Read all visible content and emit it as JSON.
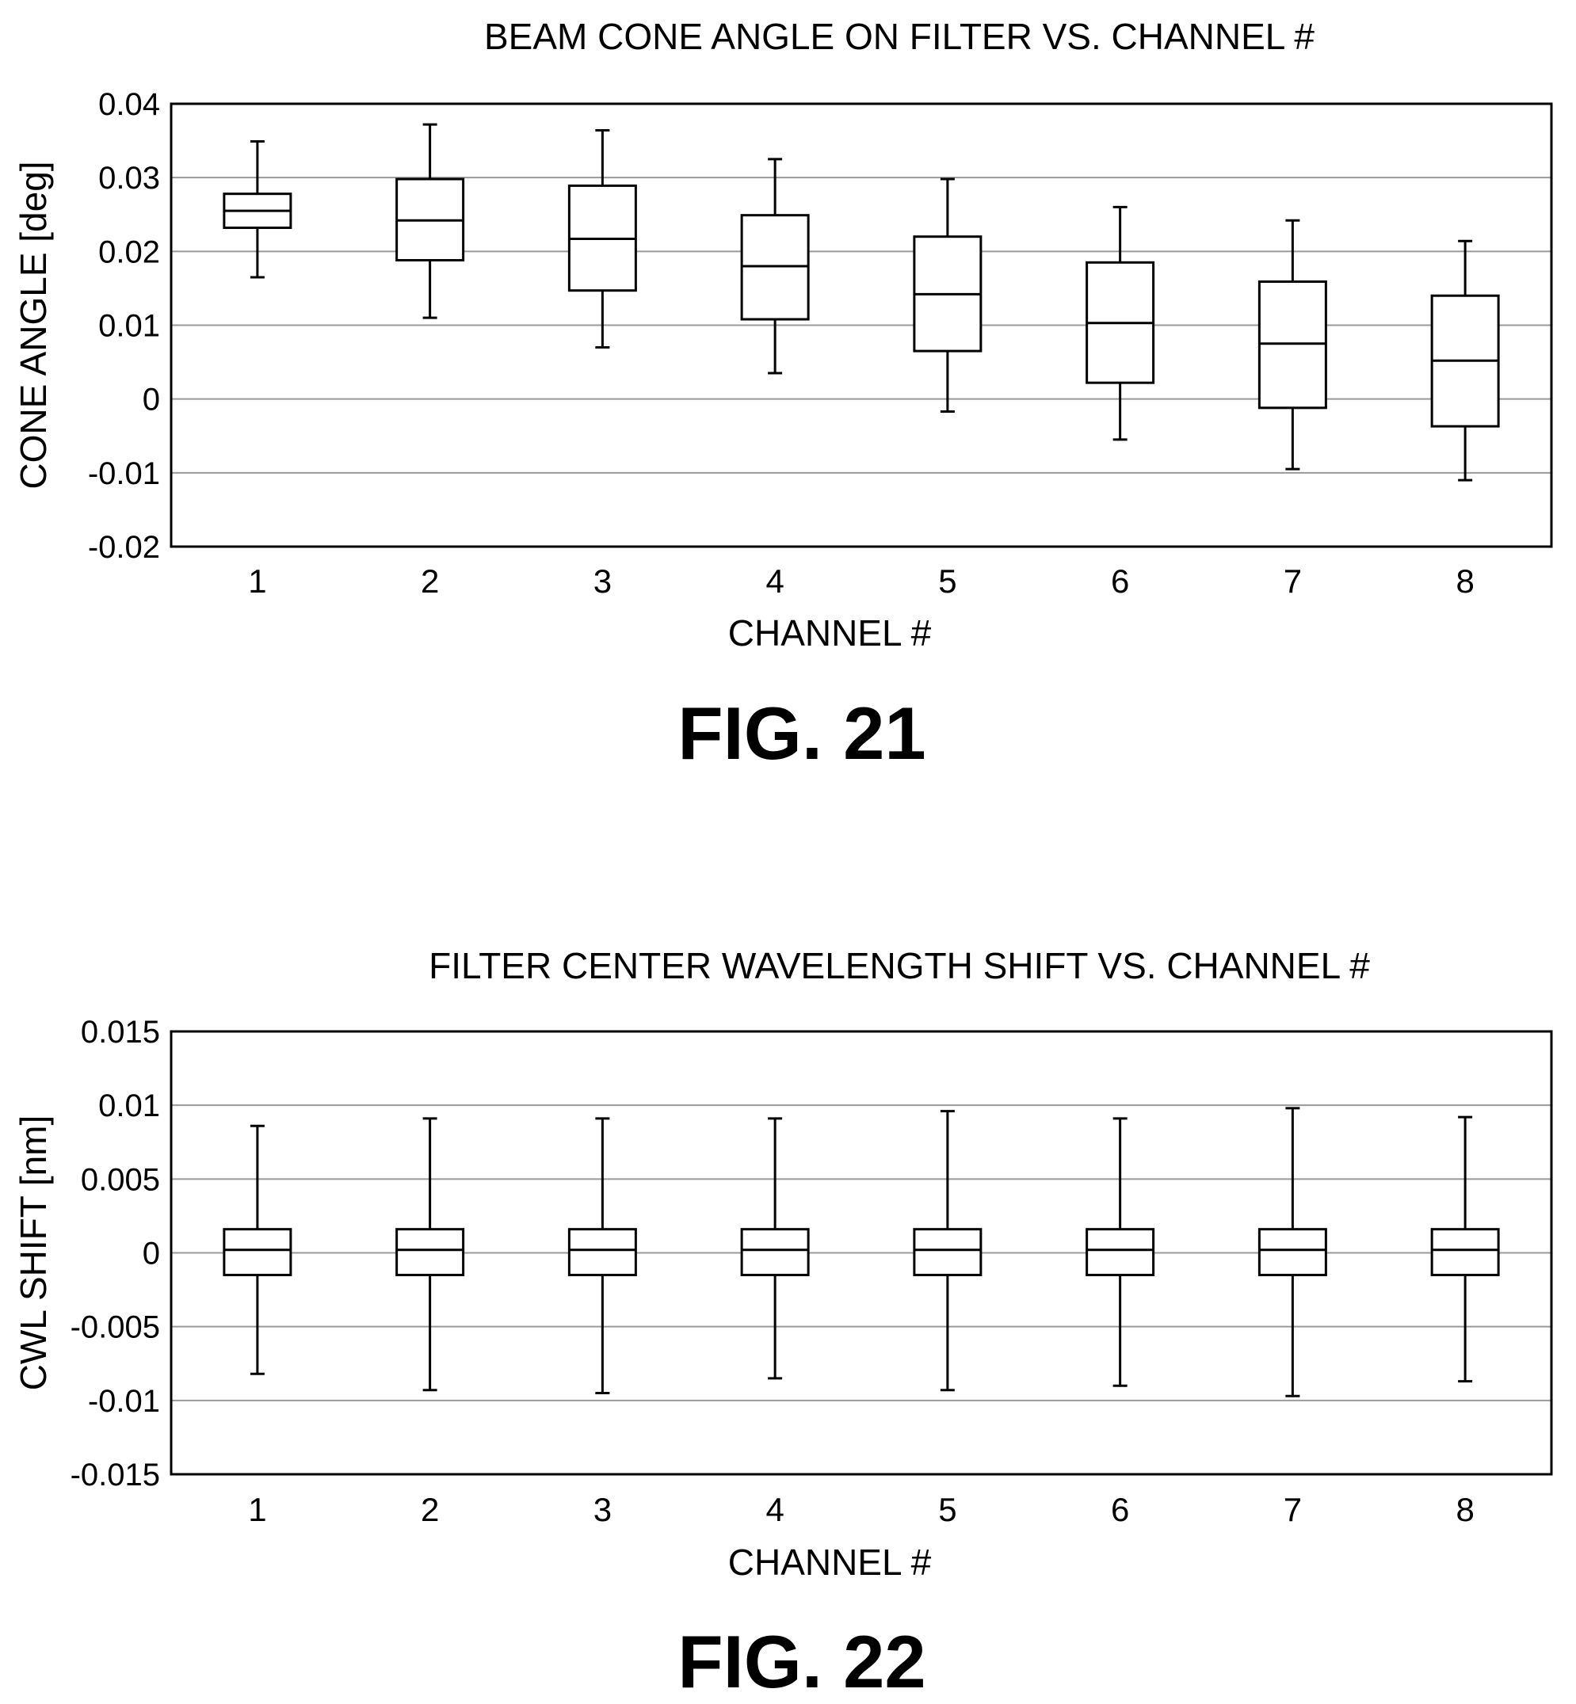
{
  "chart_data": [
    {
      "type": "box",
      "title": "BEAM CONE ANGLE ON FILTER VS. CHANNEL #",
      "xlabel": "CHANNEL #",
      "ylabel": "CONE ANGLE [deg]",
      "ylim": [
        -0.02,
        0.04
      ],
      "yticks": [
        "0.04",
        "0.03",
        "0.02",
        "0.01",
        "0",
        "-0.01",
        "-0.02"
      ],
      "grid": true,
      "categories": [
        "1",
        "2",
        "3",
        "4",
        "5",
        "6",
        "7",
        "8"
      ],
      "boxes": [
        {
          "min": 0.0165,
          "q1": 0.0232,
          "median": 0.0255,
          "q3": 0.0278,
          "max": 0.0349
        },
        {
          "min": 0.011,
          "q1": 0.0188,
          "median": 0.0242,
          "q3": 0.0298,
          "max": 0.0372
        },
        {
          "min": 0.007,
          "q1": 0.0147,
          "median": 0.0217,
          "q3": 0.0289,
          "max": 0.0364
        },
        {
          "min": 0.0035,
          "q1": 0.0108,
          "median": 0.018,
          "q3": 0.0249,
          "max": 0.0325
        },
        {
          "min": -0.0017,
          "q1": 0.0065,
          "median": 0.0142,
          "q3": 0.022,
          "max": 0.0298
        },
        {
          "min": -0.0055,
          "q1": 0.0022,
          "median": 0.0103,
          "q3": 0.0185,
          "max": 0.026
        },
        {
          "min": -0.0095,
          "q1": -0.0012,
          "median": 0.0075,
          "q3": 0.0159,
          "max": 0.0242
        },
        {
          "min": -0.011,
          "q1": -0.0037,
          "median": 0.0052,
          "q3": 0.014,
          "max": 0.0214
        }
      ]
    },
    {
      "type": "box",
      "title": "FILTER CENTER WAVELENGTH SHIFT VS. CHANNEL #",
      "xlabel": "CHANNEL #",
      "ylabel": "CWL SHIFT [nm]",
      "ylim": [
        -0.015,
        0.015
      ],
      "yticks": [
        "0.015",
        "0.01",
        "0.005",
        "0",
        "-0.005",
        "-0.01",
        "-0.015"
      ],
      "grid": true,
      "categories": [
        "1",
        "2",
        "3",
        "4",
        "5",
        "6",
        "7",
        "8"
      ],
      "boxes": [
        {
          "min": -0.0082,
          "q1": -0.0015,
          "median": 0.0002,
          "q3": 0.0016,
          "max": 0.0086
        },
        {
          "min": -0.0093,
          "q1": -0.0015,
          "median": 0.0002,
          "q3": 0.0016,
          "max": 0.0091
        },
        {
          "min": -0.0095,
          "q1": -0.0015,
          "median": 0.0002,
          "q3": 0.0016,
          "max": 0.0091
        },
        {
          "min": -0.0085,
          "q1": -0.0015,
          "median": 0.0002,
          "q3": 0.0016,
          "max": 0.0091
        },
        {
          "min": -0.0093,
          "q1": -0.0015,
          "median": 0.0002,
          "q3": 0.0016,
          "max": 0.0096
        },
        {
          "min": -0.009,
          "q1": -0.0015,
          "median": 0.0002,
          "q3": 0.0016,
          "max": 0.0091
        },
        {
          "min": -0.0097,
          "q1": -0.0015,
          "median": 0.0002,
          "q3": 0.0016,
          "max": 0.0098
        },
        {
          "min": -0.0087,
          "q1": -0.0015,
          "median": 0.0002,
          "q3": 0.0016,
          "max": 0.0092
        }
      ]
    }
  ],
  "figures": {
    "fig21_label": "FIG. 21",
    "fig22_label": "FIG. 22"
  }
}
